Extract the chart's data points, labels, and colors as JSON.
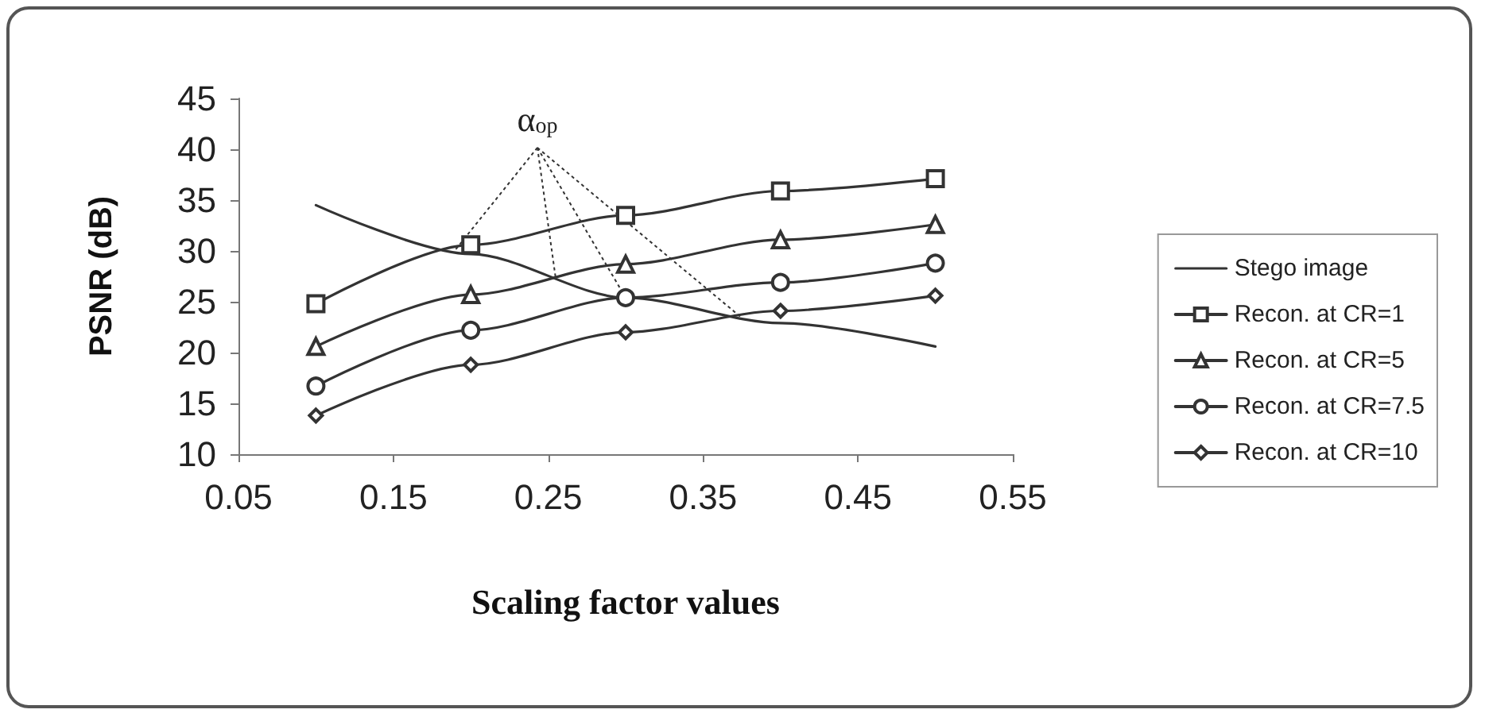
{
  "chart_data": {
    "type": "line",
    "xlabel": "Scaling factor values",
    "ylabel": "PSNR (dB)",
    "x": [
      0.1,
      0.2,
      0.3,
      0.4,
      0.5
    ],
    "xlim": [
      0.05,
      0.55
    ],
    "xticks": [
      0.05,
      0.15,
      0.25,
      0.35,
      0.45,
      0.55
    ],
    "ylim": [
      10,
      45
    ],
    "yticks": [
      10,
      15,
      20,
      25,
      30,
      35,
      40,
      45
    ],
    "grid": false,
    "legend": "right",
    "annotations": [
      {
        "text": "α$_{op}$",
        "x": 0.19,
        "y": 30.1
      }
    ],
    "series": [
      {
        "name": "Stego image",
        "color": "#333333",
        "marker": "none",
        "values": [
          34.5,
          29.7,
          25.4,
          22.9,
          20.6
        ]
      },
      {
        "name": "Recon. at CR=1",
        "color": "#333333",
        "marker": "square",
        "values": [
          24.8,
          30.6,
          33.5,
          35.9,
          37.1
        ]
      },
      {
        "name": "Recon. at CR=5",
        "color": "#333333",
        "marker": "triangle",
        "values": [
          20.6,
          25.7,
          28.7,
          31.1,
          32.6
        ]
      },
      {
        "name": "Recon. at CR=7.5",
        "color": "#333333",
        "marker": "circle",
        "values": [
          16.7,
          22.2,
          25.4,
          26.9,
          28.8
        ]
      },
      {
        "name": "Recon. at CR=10",
        "color": "#333333",
        "marker": "diamond",
        "values": [
          13.8,
          18.8,
          22.0,
          24.1,
          25.6
        ]
      }
    ]
  }
}
